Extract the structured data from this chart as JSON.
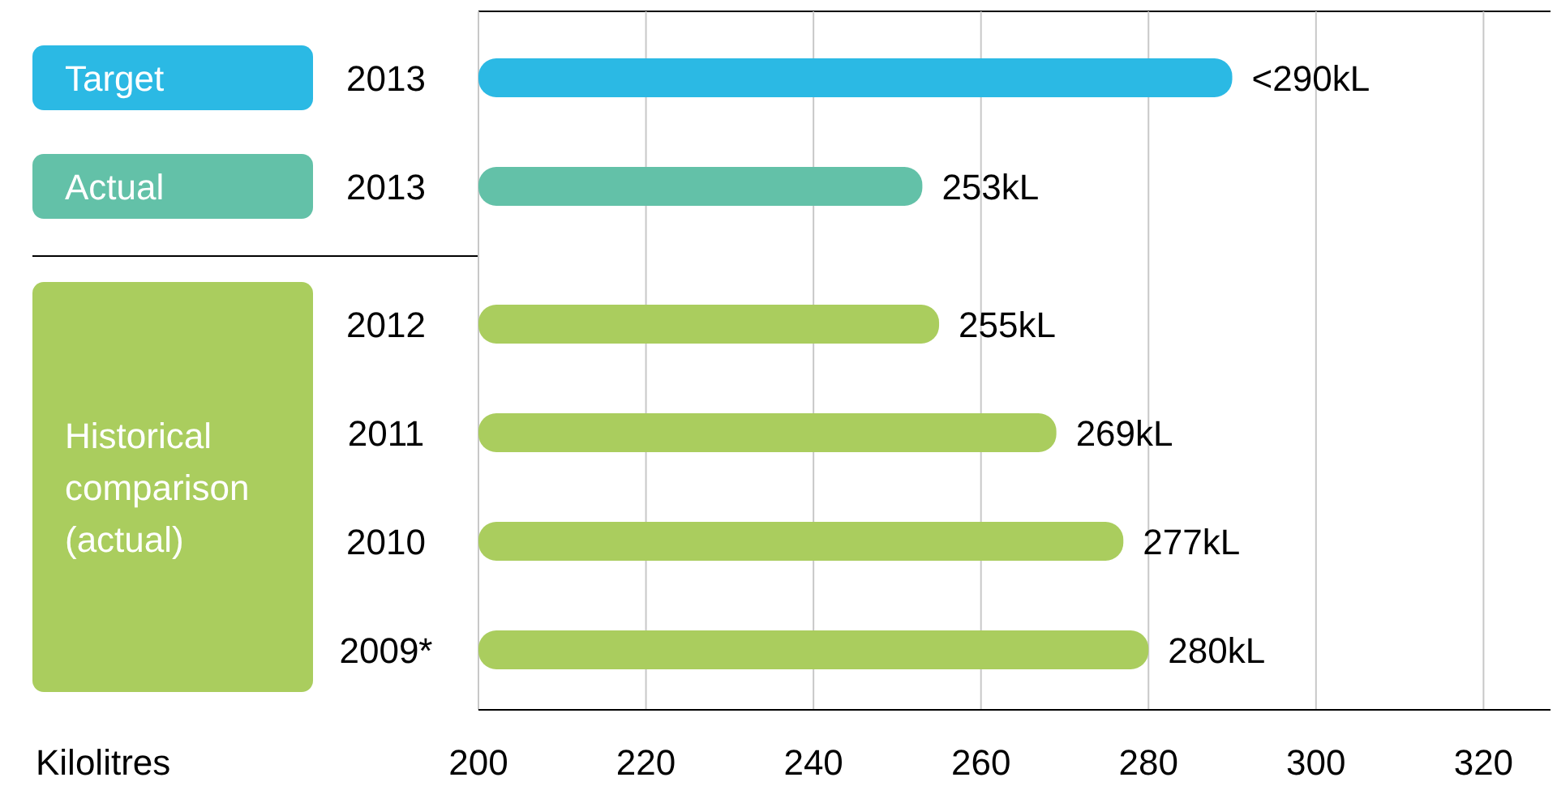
{
  "chart_data": {
    "type": "bar",
    "orientation": "horizontal",
    "categories": [
      "2013",
      "2013",
      "2012",
      "2011",
      "2010",
      "2009*"
    ],
    "values": [
      290,
      253,
      255,
      269,
      277,
      280
    ],
    "value_labels": [
      "<290kL",
      "253kL",
      "255kL",
      "269kL",
      "277kL",
      "280kL"
    ],
    "colors": [
      "#2bb9e4",
      "#63c1a8",
      "#aacd5e",
      "#aacd5e",
      "#aacd5e",
      "#aacd5e"
    ],
    "xlim": [
      200,
      328
    ],
    "xticks": [
      200,
      220,
      240,
      260,
      280,
      300,
      320
    ],
    "xlabel": "Kilolitres",
    "annotations": [
      "Target",
      "Actual",
      "Historical comparison (actual)"
    ],
    "grid": "x"
  }
}
